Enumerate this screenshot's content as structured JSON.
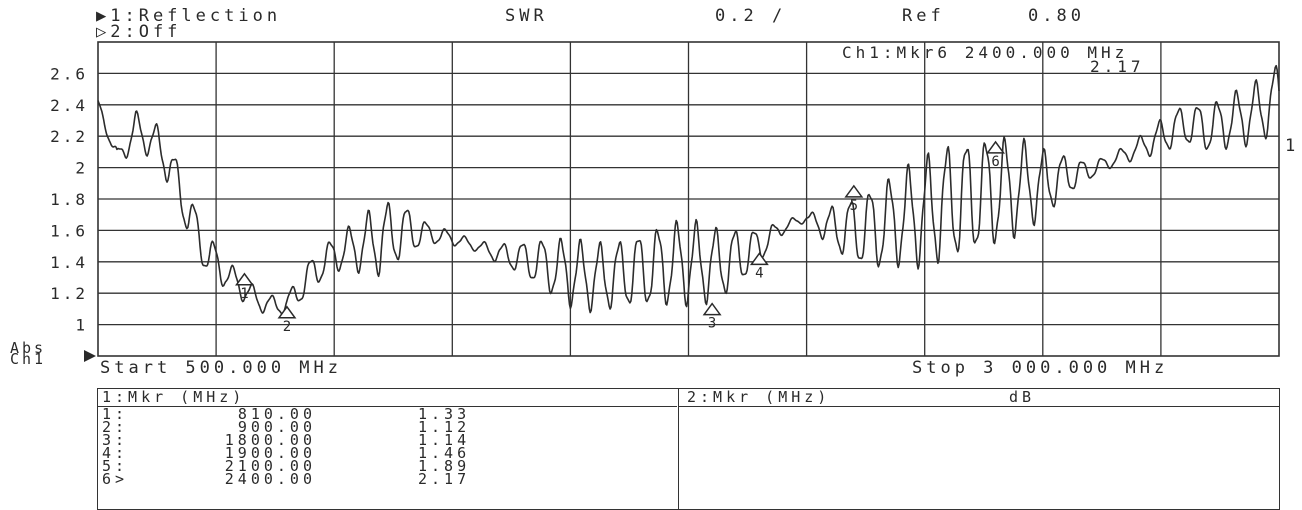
{
  "header": {
    "ch1_label": "▶1:Reflection",
    "ch2_label": "▷2:Off",
    "format": "SWR",
    "scale": "0.2 /",
    "ref_label": "Ref",
    "ref_value": "0.80"
  },
  "marker_readout": {
    "line1": "Ch1:Mkr6 2400.000 MHz",
    "line2": "2.17"
  },
  "left_label": {
    "line1": "Abs",
    "line2": "Ch1"
  },
  "trace_ref_label": "1",
  "start_label": "Start 500.000 MHz",
  "stop_label": "Stop 3 000.000 MHz",
  "chart_data": {
    "type": "line",
    "xlim": [
      500,
      3000
    ],
    "ylim": [
      0.8,
      2.8
    ],
    "yticks": [
      "2.6",
      "2.4",
      "2.2",
      "2",
      "1.8",
      "1.6",
      "1.4",
      "1.2",
      "1"
    ],
    "ytick_values": [
      2.6,
      2.4,
      2.2,
      2.0,
      1.8,
      1.6,
      1.4,
      1.2,
      1.0
    ],
    "grid": true,
    "series": [
      {
        "x": [
          500,
          520,
          540,
          560,
          580,
          600,
          620,
          640,
          660,
          680,
          700,
          720,
          740,
          760,
          780,
          800,
          820,
          840,
          860,
          880,
          900,
          920,
          940,
          960,
          980,
          1000,
          1050,
          1100,
          1150,
          1200,
          1250,
          1300,
          1350,
          1400,
          1450,
          1500,
          1550,
          1600,
          1650,
          1700,
          1750,
          1800,
          1850,
          1900,
          1950,
          2000,
          2050,
          2100,
          2150,
          2200,
          2250,
          2300,
          2350,
          2400,
          2450,
          2500,
          2550,
          2600,
          2650,
          2700,
          2750,
          2800,
          2850,
          2900,
          2950,
          3000
        ],
        "y": [
          2.4,
          2.25,
          2.05,
          2.15,
          2.25,
          2.2,
          2.15,
          2.1,
          1.95,
          1.8,
          1.65,
          1.5,
          1.42,
          1.36,
          1.3,
          1.25,
          1.2,
          1.15,
          1.13,
          1.12,
          1.13,
          1.2,
          1.28,
          1.35,
          1.4,
          1.45,
          1.5,
          1.55,
          1.6,
          1.58,
          1.55,
          1.5,
          1.45,
          1.42,
          1.38,
          1.33,
          1.3,
          1.32,
          1.35,
          1.38,
          1.4,
          1.38,
          1.42,
          1.5,
          1.62,
          1.68,
          1.62,
          1.6,
          1.62,
          1.68,
          1.72,
          1.78,
          1.82,
          1.85,
          1.88,
          1.9,
          1.95,
          1.98,
          2.05,
          2.12,
          2.2,
          2.28,
          2.25,
          2.3,
          2.35,
          2.45
        ],
        "ripple_amplitude": [
          0.03,
          0.05,
          0.06,
          0.08,
          0.1,
          0.1,
          0.12,
          0.14,
          0.14,
          0.14,
          0.14,
          0.12,
          0.12,
          0.1,
          0.08,
          0.08,
          0.07,
          0.06,
          0.06,
          0.05,
          0.06,
          0.08,
          0.1,
          0.1,
          0.1,
          0.1,
          0.15,
          0.22,
          0.15,
          0.06,
          0.04,
          0.03,
          0.06,
          0.1,
          0.16,
          0.2,
          0.2,
          0.2,
          0.22,
          0.24,
          0.25,
          0.22,
          0.18,
          0.1,
          0.04,
          0.02,
          0.12,
          0.2,
          0.25,
          0.28,
          0.32,
          0.34,
          0.34,
          0.32,
          0.28,
          0.2,
          0.12,
          0.05,
          0.04,
          0.06,
          0.1,
          0.12,
          0.14,
          0.16,
          0.18,
          0.2
        ]
      }
    ],
    "markers": [
      {
        "label": "1",
        "x": 810,
        "y": 1.33
      },
      {
        "label": "2",
        "x": 900,
        "y": 1.12
      },
      {
        "label": "3",
        "x": 1800,
        "y": 1.14
      },
      {
        "label": "4",
        "x": 1900,
        "y": 1.46
      },
      {
        "label": "5",
        "x": 2100,
        "y": 1.89
      },
      {
        "label": "6",
        "x": 2400,
        "y": 2.17
      }
    ]
  },
  "table1": {
    "header": "1:Mkr (MHz)",
    "rows": [
      {
        "idx": "1:",
        "freq": "810.00",
        "val": "1.33"
      },
      {
        "idx": "2:",
        "freq": "900.00",
        "val": "1.12"
      },
      {
        "idx": "3:",
        "freq": "1800.00",
        "val": "1.14"
      },
      {
        "idx": "4:",
        "freq": "1900.00",
        "val": "1.46"
      },
      {
        "idx": "5:",
        "freq": "2100.00",
        "val": "1.89"
      },
      {
        "idx": "6>",
        "freq": "2400.00",
        "val": "2.17"
      }
    ]
  },
  "table2": {
    "header": "2:Mkr (MHz)",
    "unit": "dB"
  }
}
